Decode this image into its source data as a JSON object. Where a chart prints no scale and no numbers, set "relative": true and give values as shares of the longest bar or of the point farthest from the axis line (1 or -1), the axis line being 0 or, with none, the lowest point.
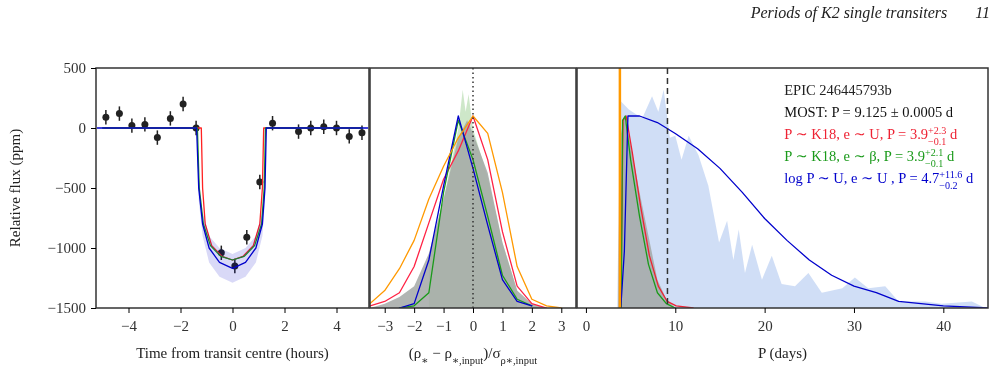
{
  "chart_data": [
    {
      "type": "line",
      "xlabel": "Time from transit centre (hours)",
      "ylabel": "Relative flux (ppm)",
      "xlim": [
        -5.25,
        5.25
      ],
      "ylim": [
        -1500,
        500
      ],
      "xticks": [
        {
          "value": -4,
          "label": "−4"
        },
        {
          "value": -2,
          "label": "−2"
        },
        0,
        2,
        4
      ],
      "yticks": [
        {
          "value": -1500,
          "label": "−1500"
        },
        {
          "value": -1000,
          "label": "−1000"
        },
        {
          "value": -500,
          "label": "−500"
        },
        0,
        500
      ],
      "series": [
        {
          "type": "scatter",
          "color": "#222222",
          "x": [
            -4.87,
            -4.35,
            -3.87,
            -3.37,
            -2.89,
            -2.39,
            -1.9,
            -1.4,
            -0.43,
            0.09,
            0.55,
            1.05,
            1.54,
            2.54,
            3.01,
            3.51,
            4.0,
            4.49,
            4.98
          ],
          "values": [
            90,
            120,
            20,
            30,
            -80,
            80,
            200,
            0,
            -1040,
            -1150,
            -910,
            -450,
            40,
            -30,
            0,
            10,
            0,
            -70,
            -40
          ],
          "errors": [
            60,
            60,
            60,
            60,
            60,
            60,
            60,
            60,
            60,
            60,
            60,
            60,
            60,
            60,
            60,
            60,
            60,
            60,
            60
          ]
        },
        {
          "color": "#ff2222",
          "x": [
            -4.95,
            -1.2,
            -1.15,
            -1.05,
            -0.8,
            -0.4,
            0,
            0.4,
            0.8,
            1.05,
            1.15,
            1.2,
            4.95
          ],
          "values": [
            0,
            0,
            -500,
            -800,
            -980,
            -1070,
            -1100,
            -1070,
            -980,
            -800,
            -500,
            0,
            0
          ]
        },
        {
          "color": "#1a9a1a",
          "x": [
            -5.0,
            -1.35,
            -1.28,
            -1.12,
            -0.85,
            -0.45,
            0,
            0.45,
            0.85,
            1.12,
            1.22,
            1.27,
            5.0
          ],
          "values": [
            0,
            0,
            -500,
            -800,
            -980,
            -1070,
            -1100,
            -1070,
            -980,
            -800,
            -500,
            0,
            0
          ]
        },
        {
          "color": "#0000cc",
          "x": [
            -5.2,
            -1.38,
            -1.3,
            -1.15,
            -0.9,
            -0.5,
            0,
            0.5,
            0.9,
            1.15,
            1.25,
            1.3,
            5.2
          ],
          "values": [
            0,
            0,
            -500,
            -800,
            -1000,
            -1120,
            -1170,
            -1120,
            -1000,
            -800,
            -500,
            0,
            0
          ],
          "lower": [
            0,
            0,
            -600,
            -900,
            -1120,
            -1240,
            -1290,
            -1240,
            -1120,
            -900,
            -600,
            0,
            0
          ],
          "upper": [
            0,
            0,
            -400,
            -700,
            -900,
            -1000,
            -1050,
            -1000,
            -900,
            -700,
            -400,
            0,
            0
          ]
        }
      ]
    },
    {
      "type": "line",
      "xlabel": "(ρ$_{∗}$ − ρ$_{∗,input}$)/σ$_{ρ∗,input}$",
      "relative": true,
      "tick_labels": "x",
      "xlim": [
        -3.5,
        3.5
      ],
      "xticks": [
        {
          "value": -3,
          "label": "−3"
        },
        {
          "value": -2,
          "label": "−2"
        },
        {
          "value": -1,
          "label": "−1"
        },
        0,
        1,
        2,
        3
      ],
      "ref_lines": [
        {
          "axis": "x",
          "value": 0,
          "color": "#333333",
          "line_style": "dotted"
        }
      ],
      "series": [
        {
          "type": "area",
          "color": "#c5e3c0",
          "x": [
            -1.5,
            -1,
            -0.5,
            -0.35,
            -0.25,
            -0.15,
            0,
            0.5,
            1,
            1.5
          ],
          "values": [
            0.22,
            0.5,
            0.82,
            1,
            0.9,
            0.98,
            0.82,
            0.6,
            0.3,
            0.08
          ]
        },
        {
          "type": "area",
          "color": "#a3a8a6",
          "x": [
            -3.5,
            -3,
            -2.5,
            -2,
            -1.5,
            -1,
            -0.5,
            -0.2,
            0,
            0.5,
            1,
            1.5,
            2,
            2.5,
            3,
            3.5
          ],
          "values": [
            0,
            0.02,
            0.05,
            0.1,
            0.25,
            0.5,
            0.78,
            0.86,
            0.8,
            0.62,
            0.3,
            0.08,
            0.02,
            0,
            0,
            0
          ]
        },
        {
          "color": "#ff2244",
          "x": [
            -3.5,
            -3,
            -2.5,
            -2,
            -1.5,
            -1,
            -0.5,
            0,
            0.5,
            1,
            1.5,
            2,
            2.5
          ],
          "values": [
            0.01,
            0.03,
            0.07,
            0.19,
            0.39,
            0.59,
            0.72,
            0.88,
            0.68,
            0.35,
            0.1,
            0.02,
            0
          ]
        },
        {
          "color": "#1a9a1a",
          "x": [
            -2.5,
            -2,
            -1.5,
            -1,
            -0.5,
            0,
            0.5,
            1,
            1.5,
            2
          ],
          "values": [
            0,
            0.01,
            0.07,
            0.53,
            0.86,
            0.68,
            0.42,
            0.15,
            0.04,
            0.01
          ]
        },
        {
          "color": "#0000cc",
          "x": [
            -2.5,
            -2,
            -1.5,
            -1,
            -0.5,
            0,
            0.5,
            1,
            1.5,
            2
          ],
          "values": [
            0,
            0.02,
            0.22,
            0.56,
            0.88,
            0.64,
            0.38,
            0.13,
            0.03,
            0.01
          ]
        },
        {
          "color": "#ff9900",
          "x": [
            -3.5,
            -3,
            -2.5,
            -2,
            -1.5,
            -1,
            -0.5,
            0,
            0.5,
            1,
            1.5,
            2,
            2.5,
            3
          ],
          "values": [
            0.02,
            0.08,
            0.18,
            0.31,
            0.5,
            0.65,
            0.78,
            0.88,
            0.8,
            0.53,
            0.19,
            0.04,
            0.01,
            0
          ]
        }
      ]
    },
    {
      "type": "line",
      "xlabel": "P (days)",
      "relative": true,
      "tick_labels": "x",
      "xlim": [
        -1,
        45
      ],
      "xticks": [
        0,
        10,
        20,
        30,
        40
      ],
      "legend": "top right",
      "legend_title": "EPIC 246445793b",
      "annotations": [
        "Periods of K2 single transiters",
        "11"
      ],
      "ref_lines": [
        {
          "axis": "x",
          "value": 3.8,
          "color": "#ff9900",
          "line_style": "solid"
        },
        {
          "axis": "x",
          "value": 9.125,
          "color": "#333333",
          "line_style": "dashed",
          "label": "MOST: P = 9.125 ± 0.0005 d"
        }
      ],
      "series": [
        {
          "type": "area",
          "color": "#c8d8f4",
          "x": [
            3.5,
            3.85,
            4.8,
            6.3,
            7.4,
            8.1,
            8.7,
            9.4,
            10,
            10.7,
            11.5,
            12.6,
            13.7,
            14.9,
            15.8,
            16.5,
            17.1,
            17.8,
            18.6,
            19.7,
            20.8,
            21.9,
            23.4,
            24.9,
            26.4,
            28.7,
            30.1,
            31.6,
            33.5,
            35,
            38,
            39.8,
            43.2,
            44.7
          ],
          "values": [
            0,
            0.95,
            0.91,
            0.87,
            0.97,
            0.9,
            1,
            0.78,
            0.79,
            0.68,
            0.79,
            0.7,
            0.56,
            0.3,
            0.4,
            0.22,
            0.36,
            0.16,
            0.29,
            0.13,
            0.24,
            0.11,
            0.1,
            0.16,
            0.07,
            0.09,
            0.14,
            0.09,
            0.1,
            0.03,
            0.03,
            0.02,
            0.03,
            0
          ]
        },
        {
          "type": "area",
          "color": "#a3a8a6",
          "x": [
            3.6,
            3.8,
            4.3,
            5,
            6,
            7,
            8,
            9,
            10
          ],
          "values": [
            0,
            0.77,
            0.88,
            0.75,
            0.53,
            0.33,
            0.13,
            0.04,
            0
          ]
        },
        {
          "name": "P ∼ K18, e ∼ U, P = 3.9$^{+2.3}$$_{−0.1}$ d",
          "color": "#ee2233",
          "x": [
            3.9,
            4.15,
            4.5,
            5.2,
            6.1,
            7.1,
            8.1,
            9.1,
            10.1,
            12
          ],
          "values": [
            0,
            0.86,
            0.88,
            0.71,
            0.47,
            0.24,
            0.1,
            0.03,
            0.01,
            0
          ]
        },
        {
          "name": "P ∼ K18, e ∼ β, P = 3.9$^{+2.1}$$_{−0.1}$ d",
          "color": "#1a9a1a",
          "x": [
            3.95,
            4.1,
            4.4,
            5,
            6,
            7,
            8,
            9,
            10
          ],
          "values": [
            0,
            0.86,
            0.88,
            0.68,
            0.42,
            0.2,
            0.07,
            0.02,
            0
          ]
        },
        {
          "name": "log P ∼ U, e ∼ U , P = 4.7$^{+11.6}$$_{−0.2}$ d",
          "color": "#0000cc",
          "x": [
            3.9,
            4.3,
            4.7,
            6,
            8,
            10,
            12.5,
            15,
            17.5,
            20,
            22.5,
            25,
            27.5,
            30,
            32.5,
            35,
            40,
            45
          ],
          "values": [
            0,
            0.26,
            0.88,
            0.88,
            0.85,
            0.8,
            0.73,
            0.64,
            0.53,
            0.41,
            0.31,
            0.22,
            0.15,
            0.1,
            0.07,
            0.03,
            0.01,
            0
          ]
        }
      ]
    }
  ]
}
